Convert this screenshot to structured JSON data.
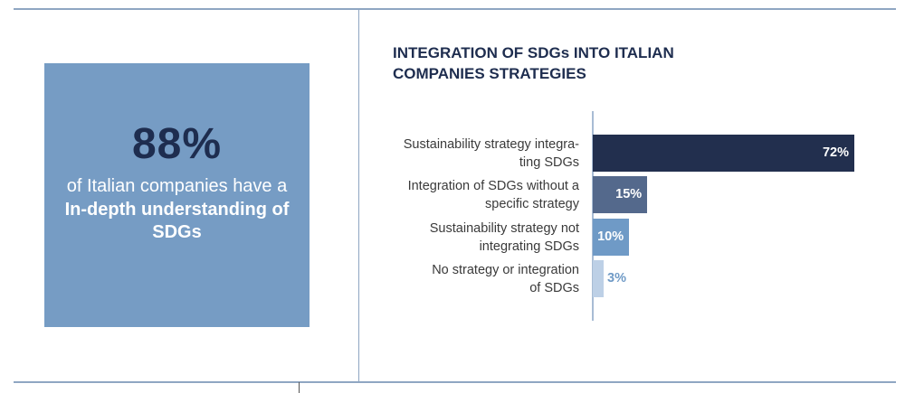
{
  "stat": {
    "value": "88%",
    "text_before": "of Italian companies have a ",
    "text_bold": "In-depth understanding of SDGs"
  },
  "colors": {
    "box": "#769cc4",
    "dark": "#1e2d4f"
  },
  "chart_data": {
    "type": "bar",
    "orientation": "horizontal",
    "title": "INTEGRATION OF SDGs INTO ITALIAN COMPANIES STRATEGIES",
    "title_lines": [
      "INTEGRATION OF SDGs INTO ITALIAN",
      "COMPANIES STRATEGIES"
    ],
    "categories": [
      [
        "Sustainability strategy integra-",
        "ting SDGs"
      ],
      [
        "Integration of SDGs without a",
        "specific strategy"
      ],
      [
        "Sustainability strategy not",
        "integrating SDGs"
      ],
      [
        "No strategy or integration",
        "of SDGs"
      ]
    ],
    "values": [
      72,
      15,
      10,
      3
    ],
    "labels": [
      "72%",
      "15%",
      "10%",
      "3%"
    ],
    "bar_colors": [
      "#222f4e",
      "#54698c",
      "#6f9ac6",
      "#bdd0e6"
    ],
    "xlim": [
      0,
      100
    ],
    "grid": false
  }
}
